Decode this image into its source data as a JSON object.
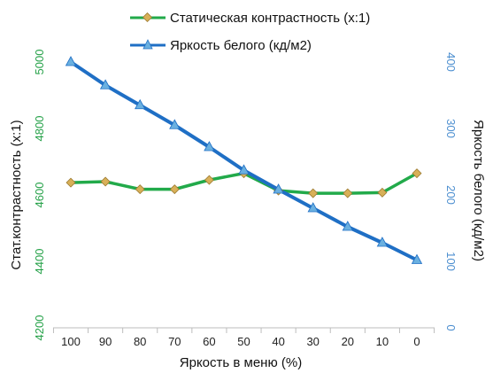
{
  "chart_data": {
    "type": "line",
    "x": [
      100,
      90,
      80,
      70,
      60,
      50,
      40,
      30,
      20,
      10,
      0
    ],
    "xlabel": "Яркость в меню (%)",
    "series": [
      {
        "name": "Статическая контрастность (х:1)",
        "axis": "left",
        "color": "#22aa4a",
        "marker": "diamond",
        "marker_color": "#d8b058",
        "values": [
          4637,
          4640,
          4617,
          4617,
          4645,
          4665,
          4613,
          4605,
          4605,
          4607,
          4665
        ]
      },
      {
        "name": "Яркость белого (кд/м2)",
        "axis": "right",
        "color": "#1f6fc5",
        "marker": "triangle",
        "marker_color": "#6ab0e0",
        "values": [
          400,
          365,
          335,
          305,
          272,
          237,
          208,
          180,
          152,
          128,
          102
        ]
      }
    ],
    "y_left": {
      "label": "Стат.контрастность  (х:1)",
      "ylim": [
        4200,
        5000
      ],
      "ticks": [
        4200,
        4400,
        4600,
        4800,
        5000
      ]
    },
    "y_right": {
      "label": "Яркость белого (кд/м2)",
      "ylim": [
        0,
        400
      ],
      "ticks": [
        0,
        100,
        200,
        300,
        400
      ]
    },
    "grid": false,
    "legend_position": "top"
  }
}
